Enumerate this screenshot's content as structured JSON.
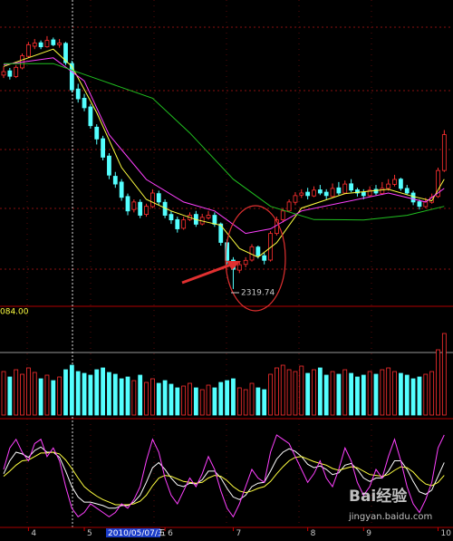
{
  "chart_data": [
    {
      "type": "candlestick",
      "up_color": "#ff3030",
      "down_color": "#54ffff",
      "ylim": [
        2260,
        3320
      ],
      "candles": [
        [
          3060,
          3090,
          3050,
          3072
        ],
        [
          3075,
          3085,
          3045,
          3056
        ],
        [
          3055,
          3095,
          3050,
          3087
        ],
        [
          3085,
          3135,
          3080,
          3127
        ],
        [
          3125,
          3175,
          3120,
          3165
        ],
        [
          3160,
          3185,
          3150,
          3171
        ],
        [
          3172,
          3180,
          3150,
          3158
        ],
        [
          3158,
          3195,
          3155,
          3180
        ],
        [
          3182,
          3190,
          3160,
          3165
        ],
        [
          3165,
          3185,
          3155,
          3171
        ],
        [
          3170,
          3175,
          3095,
          3103
        ],
        [
          3100,
          3110,
          3000,
          3009
        ],
        [
          3012,
          3030,
          2965,
          2978
        ],
        [
          2980,
          2995,
          2935,
          2947
        ],
        [
          2950,
          2960,
          2875,
          2885
        ],
        [
          2880,
          2890,
          2820,
          2839
        ],
        [
          2840,
          2850,
          2765,
          2776
        ],
        [
          2780,
          2790,
          2700,
          2714
        ],
        [
          2710,
          2725,
          2670,
          2683
        ],
        [
          2690,
          2700,
          2625,
          2637
        ],
        [
          2640,
          2650,
          2575,
          2590
        ],
        [
          2595,
          2630,
          2585,
          2621
        ],
        [
          2620,
          2630,
          2565,
          2575
        ],
        [
          2578,
          2615,
          2570,
          2606
        ],
        [
          2605,
          2665,
          2600,
          2652
        ],
        [
          2650,
          2660,
          2610,
          2621
        ],
        [
          2620,
          2630,
          2565,
          2575
        ],
        [
          2578,
          2590,
          2545,
          2559
        ],
        [
          2560,
          2570,
          2515,
          2528
        ],
        [
          2530,
          2570,
          2525,
          2559
        ],
        [
          2560,
          2585,
          2555,
          2575
        ],
        [
          2578,
          2590,
          2535,
          2544
        ],
        [
          2545,
          2580,
          2540,
          2568
        ],
        [
          2566,
          2590,
          2560,
          2575
        ],
        [
          2575,
          2585,
          2535,
          2544
        ],
        [
          2545,
          2550,
          2470,
          2481
        ],
        [
          2480,
          2490,
          2405,
          2419
        ],
        [
          2420,
          2430,
          2319.74,
          2388
        ],
        [
          2385,
          2415,
          2375,
          2404
        ],
        [
          2405,
          2430,
          2395,
          2419
        ],
        [
          2420,
          2475,
          2415,
          2466
        ],
        [
          2465,
          2470,
          2425,
          2435
        ],
        [
          2435,
          2445,
          2405,
          2419
        ],
        [
          2420,
          2520,
          2415,
          2512
        ],
        [
          2512,
          2570,
          2505,
          2559
        ],
        [
          2560,
          2600,
          2550,
          2590
        ],
        [
          2590,
          2630,
          2585,
          2621
        ],
        [
          2620,
          2655,
          2610,
          2643
        ],
        [
          2645,
          2665,
          2635,
          2652
        ],
        [
          2655,
          2670,
          2630,
          2643
        ],
        [
          2642,
          2675,
          2638,
          2662
        ],
        [
          2663,
          2680,
          2645,
          2652
        ],
        [
          2655,
          2665,
          2630,
          2643
        ],
        [
          2640,
          2685,
          2635,
          2668
        ],
        [
          2670,
          2690,
          2645,
          2652
        ],
        [
          2652,
          2695,
          2648,
          2683
        ],
        [
          2684,
          2700,
          2655,
          2662
        ],
        [
          2663,
          2670,
          2640,
          2652
        ],
        [
          2655,
          2665,
          2630,
          2643
        ],
        [
          2643,
          2675,
          2638,
          2662
        ],
        [
          2665,
          2680,
          2645,
          2652
        ],
        [
          2650,
          2690,
          2645,
          2668
        ],
        [
          2668,
          2700,
          2660,
          2683
        ],
        [
          2682,
          2715,
          2675,
          2699
        ],
        [
          2700,
          2705,
          2660,
          2668
        ],
        [
          2668,
          2680,
          2645,
          2652
        ],
        [
          2652,
          2660,
          2610,
          2621
        ],
        [
          2622,
          2630,
          2595,
          2606
        ],
        [
          2605,
          2635,
          2600,
          2621
        ],
        [
          2620,
          2650,
          2615,
          2637
        ],
        [
          2640,
          2740,
          2635,
          2730
        ],
        [
          2730,
          2870,
          2725,
          2854
        ]
      ],
      "series": [
        {
          "color": "#ffff40",
          "x": [
            0,
            8,
            11,
            15,
            19,
            23,
            27,
            31,
            35,
            38,
            41,
            44,
            48,
            55,
            62,
            66,
            69,
            71
          ],
          "values": [
            3090,
            3150,
            3090,
            2930,
            2740,
            2630,
            2590,
            2560,
            2540,
            2460,
            2430,
            2480,
            2600,
            2650,
            2665,
            2640,
            2625,
            2700
          ]
        },
        {
          "color": "#ff40ff",
          "x": [
            0,
            8,
            13,
            17,
            23,
            29,
            34,
            39,
            43,
            48,
            55,
            62,
            68,
            71
          ],
          "values": [
            3096,
            3120,
            3040,
            2854,
            2699,
            2621,
            2590,
            2512,
            2528,
            2590,
            2621,
            2652,
            2621,
            2668
          ]
        },
        {
          "color": "#20c020",
          "x": [
            0,
            8,
            16,
            24,
            30,
            37,
            43,
            50,
            58,
            65,
            71
          ],
          "values": [
            3100,
            3100,
            3040,
            2980,
            2860,
            2700,
            2606,
            2560,
            2559,
            2575,
            2606
          ]
        }
      ],
      "annotation": {
        "text": "2319.74"
      }
    },
    {
      "type": "bar",
      "ylim": [
        0,
        100
      ],
      "top_label": "084.00",
      "values": [
        48,
        42,
        50,
        45,
        52,
        47,
        40,
        44,
        38,
        42,
        50,
        55,
        48,
        46,
        44,
        50,
        52,
        47,
        45,
        40,
        42,
        38,
        44,
        36,
        40,
        35,
        38,
        34,
        30,
        32,
        35,
        30,
        28,
        33,
        30,
        36,
        38,
        40,
        30,
        28,
        35,
        30,
        28,
        45,
        52,
        55,
        50,
        48,
        54,
        46,
        50,
        52,
        44,
        48,
        45,
        50,
        46,
        42,
        44,
        48,
        45,
        50,
        52,
        48,
        46,
        44,
        40,
        42,
        45,
        48,
        72,
        90
      ]
    },
    {
      "type": "line",
      "ylim": [
        0,
        100
      ],
      "categories": [
        null,
        null,
        null,
        null,
        "4",
        null,
        null,
        null,
        null,
        null,
        null,
        null,
        null,
        "5",
        null,
        null,
        null,
        null,
        null,
        null,
        null,
        null,
        null,
        null,
        null,
        null,
        "6",
        null,
        null,
        null,
        null,
        null,
        null,
        null,
        null,
        null,
        null,
        "7",
        null,
        null,
        null,
        null,
        null,
        null,
        null,
        null,
        null,
        null,
        null,
        "8",
        null,
        null,
        null,
        null,
        null,
        null,
        null,
        null,
        "9",
        null,
        null,
        null,
        null,
        null,
        null,
        null,
        null,
        null,
        null,
        null,
        "10",
        null
      ],
      "cursor_label": "2010/05/07/五",
      "series": [
        {
          "color": "#ffffff",
          "values": [
            55,
            70,
            80,
            78,
            74,
            82,
            86,
            80,
            80,
            74,
            58,
            40,
            28,
            22,
            22,
            20,
            18,
            15,
            15,
            18,
            18,
            22,
            30,
            45,
            62,
            68,
            60,
            50,
            42,
            40,
            44,
            43,
            48,
            58,
            58,
            50,
            38,
            28,
            25,
            30,
            40,
            44,
            45,
            58,
            72,
            80,
            84,
            81,
            75,
            66,
            62,
            64,
            60,
            54,
            56,
            65,
            67,
            60,
            50,
            46,
            50,
            50,
            58,
            70,
            70,
            60,
            46,
            34,
            31,
            36,
            52,
            68
          ]
        },
        {
          "color": "#ffff40",
          "values": [
            52,
            58,
            65,
            70,
            71,
            75,
            79,
            79,
            80,
            78,
            71,
            61,
            50,
            40,
            34,
            29,
            25,
            22,
            19,
            19,
            19,
            20,
            23,
            30,
            41,
            50,
            53,
            52,
            49,
            46,
            45,
            44,
            45,
            50,
            53,
            52,
            47,
            40,
            35,
            33,
            35,
            38,
            40,
            46,
            55,
            63,
            70,
            74,
            75,
            72,
            69,
            67,
            65,
            61,
            59,
            61,
            63,
            62,
            58,
            54,
            53,
            52,
            54,
            59,
            63,
            62,
            57,
            49,
            43,
            41,
            45,
            53
          ]
        },
        {
          "color": "#ff40ff",
          "values": [
            60,
            85,
            95,
            80,
            70,
            90,
            95,
            75,
            85,
            70,
            40,
            15,
            5,
            10,
            20,
            15,
            10,
            5,
            10,
            20,
            15,
            25,
            40,
            70,
            95,
            80,
            50,
            30,
            20,
            35,
            50,
            40,
            55,
            75,
            60,
            35,
            15,
            5,
            20,
            40,
            60,
            50,
            45,
            80,
            100,
            95,
            90,
            75,
            60,
            45,
            55,
            70,
            50,
            40,
            60,
            85,
            70,
            45,
            30,
            40,
            60,
            50,
            75,
            95,
            70,
            40,
            20,
            10,
            25,
            45,
            85,
            100
          ]
        }
      ]
    }
  ],
  "watermark": {
    "brand": "Bai经验",
    "url": "jingyan.baidu.com"
  }
}
